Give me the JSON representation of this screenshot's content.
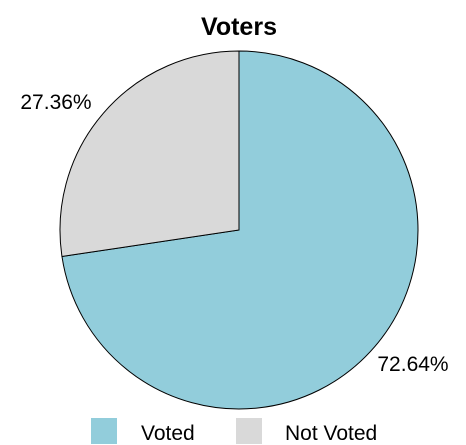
{
  "chart_data": {
    "type": "pie",
    "title": "Voters",
    "categories": [
      "Voted",
      "Not Voted"
    ],
    "values": [
      72.64,
      27.36
    ],
    "labels": [
      "72.64%",
      "27.36%"
    ],
    "colors": [
      "#92cddb",
      "#d9d9d9"
    ],
    "legend": {
      "placement": "bottom",
      "entries": [
        "Voted",
        "Not Voted"
      ]
    }
  }
}
